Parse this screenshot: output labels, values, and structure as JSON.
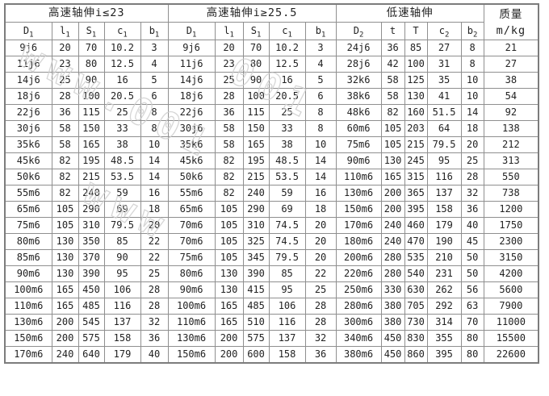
{
  "header": {
    "groups": [
      {
        "label": "高速轴伸i≤23",
        "cols": [
          "D_1",
          "l_1",
          "S_1",
          "c_1",
          "b_1"
        ]
      },
      {
        "label": "高速轴伸i≥25.5",
        "cols": [
          "D_1",
          "l_1",
          "S_1",
          "c_1",
          "b_1"
        ]
      },
      {
        "label": "低速轴伸",
        "cols": [
          "D_2",
          "t",
          "T",
          "c_2",
          "b_2"
        ]
      }
    ],
    "mass": {
      "label": "质量",
      "unit": "m/kg"
    }
  },
  "rows": [
    [
      "9j6",
      "20",
      "70",
      "10.2",
      "3",
      "9j6",
      "20",
      "70",
      "10.2",
      "3",
      "24j6",
      "36",
      "85",
      "27",
      "8",
      "21"
    ],
    [
      "11j6",
      "23",
      "80",
      "12.5",
      "4",
      "11j6",
      "23",
      "80",
      "12.5",
      "4",
      "28j6",
      "42",
      "100",
      "31",
      "8",
      "27"
    ],
    [
      "14j6",
      "25",
      "90",
      "16",
      "5",
      "14j6",
      "25",
      "90",
      "16",
      "5",
      "32k6",
      "58",
      "125",
      "35",
      "10",
      "38"
    ],
    [
      "18j6",
      "28",
      "100",
      "20.5",
      "6",
      "18j6",
      "28",
      "100",
      "20.5",
      "6",
      "38k6",
      "58",
      "130",
      "41",
      "10",
      "54"
    ],
    [
      "22j6",
      "36",
      "115",
      "25",
      "8",
      "22j6",
      "36",
      "115",
      "25",
      "8",
      "48k6",
      "82",
      "160",
      "51.5",
      "14",
      "92"
    ],
    [
      "30j6",
      "58",
      "150",
      "33",
      "8",
      "30j6",
      "58",
      "150",
      "33",
      "8",
      "60m6",
      "105",
      "203",
      "64",
      "18",
      "138"
    ],
    [
      "35k6",
      "58",
      "165",
      "38",
      "10",
      "35k6",
      "58",
      "165",
      "38",
      "10",
      "75m6",
      "105",
      "215",
      "79.5",
      "20",
      "212"
    ],
    [
      "45k6",
      "82",
      "195",
      "48.5",
      "14",
      "45k6",
      "82",
      "195",
      "48.5",
      "14",
      "90m6",
      "130",
      "245",
      "95",
      "25",
      "313"
    ],
    [
      "50k6",
      "82",
      "215",
      "53.5",
      "14",
      "50k6",
      "82",
      "215",
      "53.5",
      "14",
      "110m6",
      "165",
      "315",
      "116",
      "28",
      "550"
    ],
    [
      "55m6",
      "82",
      "240",
      "59",
      "16",
      "55m6",
      "82",
      "240",
      "59",
      "16",
      "130m6",
      "200",
      "365",
      "137",
      "32",
      "738"
    ],
    [
      "65m6",
      "105",
      "290",
      "69",
      "18",
      "65m6",
      "105",
      "290",
      "69",
      "18",
      "150m6",
      "200",
      "395",
      "158",
      "36",
      "1200"
    ],
    [
      "75m6",
      "105",
      "310",
      "79.5",
      "20",
      "70m6",
      "105",
      "310",
      "74.5",
      "20",
      "170m6",
      "240",
      "460",
      "179",
      "40",
      "1750"
    ],
    [
      "80m6",
      "130",
      "350",
      "85",
      "22",
      "70m6",
      "105",
      "325",
      "74.5",
      "20",
      "180m6",
      "240",
      "470",
      "190",
      "45",
      "2300"
    ],
    [
      "85m6",
      "130",
      "370",
      "90",
      "22",
      "75m6",
      "105",
      "345",
      "79.5",
      "20",
      "200m6",
      "280",
      "535",
      "210",
      "50",
      "3150"
    ],
    [
      "90m6",
      "130",
      "390",
      "95",
      "25",
      "80m6",
      "130",
      "390",
      "85",
      "22",
      "220m6",
      "280",
      "540",
      "231",
      "50",
      "4200"
    ],
    [
      "100m6",
      "165",
      "450",
      "106",
      "28",
      "90m6",
      "130",
      "415",
      "95",
      "25",
      "250m6",
      "330",
      "630",
      "262",
      "56",
      "5600"
    ],
    [
      "110m6",
      "165",
      "485",
      "116",
      "28",
      "100m6",
      "165",
      "485",
      "106",
      "28",
      "280m6",
      "380",
      "705",
      "292",
      "63",
      "7900"
    ],
    [
      "130m6",
      "200",
      "545",
      "137",
      "32",
      "110m6",
      "165",
      "510",
      "116",
      "28",
      "300m6",
      "380",
      "730",
      "314",
      "70",
      "11000"
    ],
    [
      "150m6",
      "200",
      "575",
      "158",
      "36",
      "130m6",
      "200",
      "575",
      "137",
      "32",
      "340m6",
      "450",
      "830",
      "355",
      "80",
      "15500"
    ],
    [
      "170m6",
      "240",
      "640",
      "179",
      "40",
      "150m6",
      "200",
      "600",
      "158",
      "36",
      "380m6",
      "450",
      "860",
      "395",
      "80",
      "22600"
    ]
  ],
  "watermark": {
    "line1": "www.001",
    "line2": "001",
    "line3": "www"
  },
  "colors": {
    "border": "#8f8f8f",
    "text": "#222222",
    "background": "#ffffff",
    "watermark": "#cfcfcf"
  }
}
